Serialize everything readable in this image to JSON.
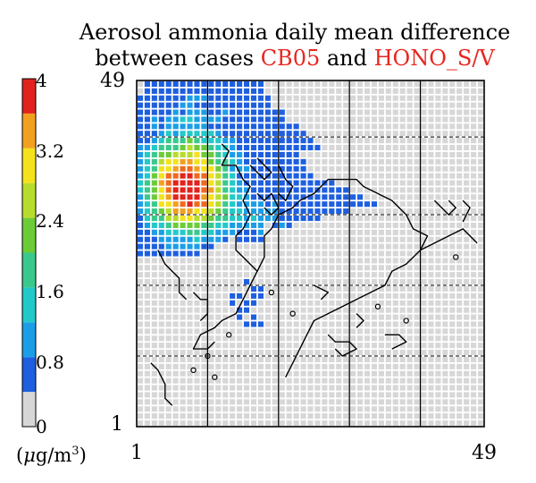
{
  "title": {
    "line1": "Aerosol ammonia daily mean difference",
    "line2_prefix": "between cases ",
    "case1": "CB05",
    "and": " and ",
    "case2": "HONO_S/V",
    "accent_color": "#e8261f"
  },
  "colorbar": {
    "unit_prefix": "(",
    "unit_mu": "μ",
    "unit_main": "g/m",
    "unit_exp": "3",
    "unit_suffix": ")",
    "ticks": [
      "0",
      "0.8",
      "1.6",
      "2.4",
      "3.2",
      "4"
    ],
    "colors": [
      "#d7d7d7",
      "#1e5fe0",
      "#1b9ee8",
      "#22c9c9",
      "#3ac98c",
      "#6bcc38",
      "#b8dc2c",
      "#f4e21c",
      "#f3a020",
      "#ef6a1e",
      "#e2231d"
    ]
  },
  "axes": {
    "y_top": "49",
    "y_bottom": "1",
    "x_left": "1",
    "x_right": "49"
  },
  "map": {
    "grid_size": 49,
    "background_cell_color": "#d7d7d7",
    "gridline_color": "#ffffff",
    "vertical_lines_at_col": [
      10,
      20,
      30,
      40
    ],
    "dashed_lat_lines_at_row": [
      8,
      19,
      29,
      39
    ]
  }
}
